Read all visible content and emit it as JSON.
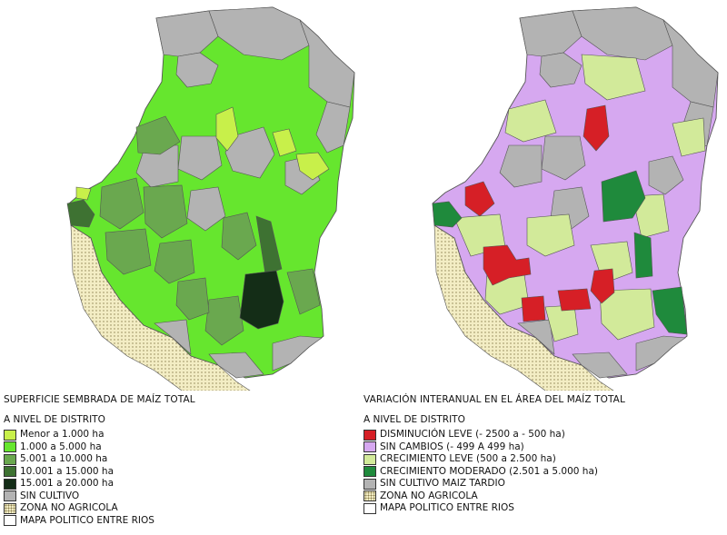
{
  "left_map": {
    "title": "SUPERFICIE SEMBRADA DE MAÍZ TOTAL",
    "subtitle": "A NIVEL DE DISTRITO",
    "legend": [
      {
        "label": "Menor a 1.000 ha",
        "color": "#c8f04a"
      },
      {
        "label": "1.000 a 5.000 ha",
        "color": "#66e62e"
      },
      {
        "label": "5.001 a 10.000 ha",
        "color": "#6aa84f"
      },
      {
        "label": "10.001 a 15.000 ha",
        "color": "#3e7232"
      },
      {
        "label": "15.001 a 20.000 ha",
        "color": "#142d17"
      },
      {
        "label": "SIN CULTIVO",
        "color": "#b3b3b3"
      },
      {
        "label": "ZONA NO AGRICOLA",
        "color": "#f3edc4",
        "pattern": "dots"
      },
      {
        "label": "MAPA POLITICO ENTRE RIOS",
        "color": "#ffffff"
      }
    ]
  },
  "right_map": {
    "title": "VARIACIÓN INTERANUAL EN EL ÁREA DEL MAÍZ TOTAL",
    "subtitle": "A NIVEL DE DISTRITO",
    "legend": [
      {
        "label": "DISMINUCIÓN LEVE (- 2500 a - 500 ha)",
        "color": "#d61f26"
      },
      {
        "label": "SIN CAMBIOS (- 499 A 499 ha)",
        "color": "#d6a8f0"
      },
      {
        "label": "CRECIMIENTO LEVE (500 a 2.500 ha)",
        "color": "#d2ea9a"
      },
      {
        "label": "CRECIMIENTO MODERADO (2.501 a 5.000 ha)",
        "color": "#1f8a3c"
      },
      {
        "label": "SIN CULTIVO MAIZ TARDIO",
        "color": "#b3b3b3"
      },
      {
        "label": "ZONA NO AGRICOLA",
        "color": "#f3edc4",
        "pattern": "dots"
      },
      {
        "label": "MAPA POLITICO ENTRE RIOS",
        "color": "#ffffff"
      }
    ]
  }
}
